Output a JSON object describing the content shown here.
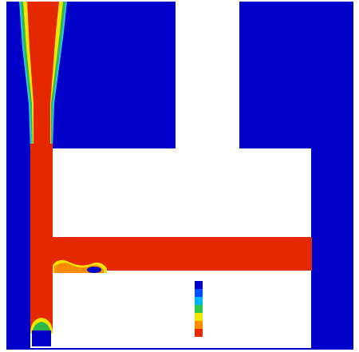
{
  "colors": {
    "phase_low": "#0000c8",
    "phase_high": "#e62800",
    "background": "#ffffff",
    "interface_yellow": "#f2e600",
    "interface_green": "#2fb84a",
    "interface_cyan": "#29c8e6",
    "interface_orange": "#ff8c00"
  },
  "colorbar": {
    "colors": [
      "#0000c8",
      "#0050ff",
      "#00b4ff",
      "#2fc84a",
      "#f2e600",
      "#ff8c00",
      "#e62800"
    ],
    "tick_labels": [
      "",
      "",
      "",
      "",
      "",
      "",
      "",
      ""
    ]
  }
}
